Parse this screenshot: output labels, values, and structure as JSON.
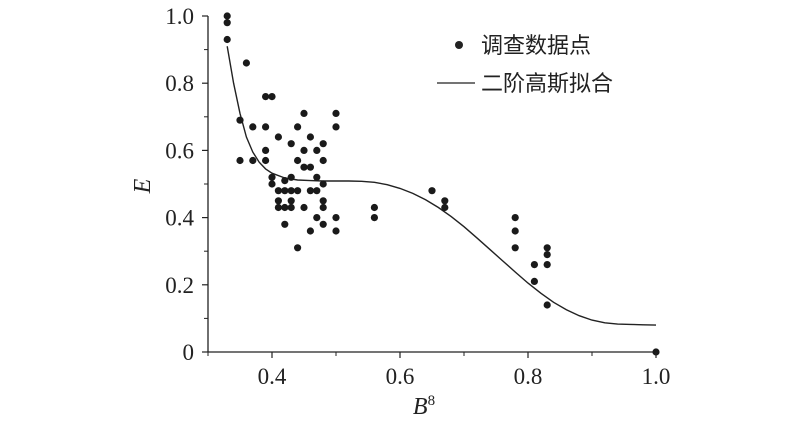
{
  "chart_data": {
    "type": "scatter",
    "xlabel": "B",
    "xlabel_sup": "8",
    "ylabel": "E",
    "xlim": [
      0.3,
      1.0
    ],
    "ylim": [
      0,
      1.0
    ],
    "x_ticks": [
      0.4,
      0.6,
      0.8,
      1.0
    ],
    "x_tick_labels": [
      "0.4",
      "0.6",
      "0.8",
      "1.0"
    ],
    "y_ticks": [
      0,
      0.2,
      0.4,
      0.6,
      0.8,
      1.0
    ],
    "y_tick_labels": [
      "0",
      "0.2",
      "0.4",
      "0.6",
      "0.8",
      "1.0"
    ],
    "grid": false,
    "legend_position": "top-right",
    "series": [
      {
        "name": "调查数据点",
        "kind": "scatter",
        "points": [
          [
            0.33,
            1.0
          ],
          [
            0.33,
            0.98
          ],
          [
            0.33,
            0.93
          ],
          [
            0.35,
            0.69
          ],
          [
            0.35,
            0.57
          ],
          [
            0.36,
            0.86
          ],
          [
            0.37,
            0.67
          ],
          [
            0.37,
            0.57
          ],
          [
            0.39,
            0.76
          ],
          [
            0.4,
            0.76
          ],
          [
            0.39,
            0.67
          ],
          [
            0.39,
            0.6
          ],
          [
            0.39,
            0.57
          ],
          [
            0.4,
            0.52
          ],
          [
            0.4,
            0.5
          ],
          [
            0.41,
            0.64
          ],
          [
            0.41,
            0.48
          ],
          [
            0.41,
            0.45
          ],
          [
            0.41,
            0.43
          ],
          [
            0.42,
            0.51
          ],
          [
            0.42,
            0.48
          ],
          [
            0.42,
            0.43
          ],
          [
            0.42,
            0.38
          ],
          [
            0.43,
            0.62
          ],
          [
            0.43,
            0.52
          ],
          [
            0.43,
            0.48
          ],
          [
            0.43,
            0.45
          ],
          [
            0.43,
            0.43
          ],
          [
            0.44,
            0.67
          ],
          [
            0.44,
            0.57
          ],
          [
            0.44,
            0.48
          ],
          [
            0.44,
            0.31
          ],
          [
            0.45,
            0.71
          ],
          [
            0.45,
            0.6
          ],
          [
            0.45,
            0.55
          ],
          [
            0.45,
            0.43
          ],
          [
            0.46,
            0.64
          ],
          [
            0.46,
            0.55
          ],
          [
            0.46,
            0.48
          ],
          [
            0.46,
            0.36
          ],
          [
            0.47,
            0.6
          ],
          [
            0.47,
            0.52
          ],
          [
            0.47,
            0.48
          ],
          [
            0.47,
            0.4
          ],
          [
            0.48,
            0.62
          ],
          [
            0.48,
            0.57
          ],
          [
            0.48,
            0.5
          ],
          [
            0.48,
            0.45
          ],
          [
            0.48,
            0.43
          ],
          [
            0.48,
            0.38
          ],
          [
            0.5,
            0.71
          ],
          [
            0.5,
            0.67
          ],
          [
            0.5,
            0.4
          ],
          [
            0.5,
            0.36
          ],
          [
            0.56,
            0.43
          ],
          [
            0.56,
            0.4
          ],
          [
            0.65,
            0.48
          ],
          [
            0.67,
            0.45
          ],
          [
            0.67,
            0.43
          ],
          [
            0.78,
            0.4
          ],
          [
            0.78,
            0.36
          ],
          [
            0.78,
            0.31
          ],
          [
            0.81,
            0.26
          ],
          [
            0.81,
            0.21
          ],
          [
            0.83,
            0.31
          ],
          [
            0.83,
            0.29
          ],
          [
            0.83,
            0.26
          ],
          [
            0.83,
            0.14
          ],
          [
            1.0,
            0.0
          ]
        ]
      },
      {
        "name": "二阶高斯拟合",
        "kind": "line",
        "points": [
          [
            0.33,
            0.91
          ],
          [
            0.34,
            0.8
          ],
          [
            0.35,
            0.71
          ],
          [
            0.36,
            0.64
          ],
          [
            0.37,
            0.595
          ],
          [
            0.38,
            0.565
          ],
          [
            0.39,
            0.545
          ],
          [
            0.4,
            0.532
          ],
          [
            0.42,
            0.518
          ],
          [
            0.44,
            0.512
          ],
          [
            0.46,
            0.51
          ],
          [
            0.48,
            0.509
          ],
          [
            0.5,
            0.509
          ],
          [
            0.52,
            0.509
          ],
          [
            0.54,
            0.508
          ],
          [
            0.56,
            0.505
          ],
          [
            0.58,
            0.498
          ],
          [
            0.6,
            0.487
          ],
          [
            0.62,
            0.472
          ],
          [
            0.64,
            0.453
          ],
          [
            0.66,
            0.43
          ],
          [
            0.68,
            0.403
          ],
          [
            0.7,
            0.373
          ],
          [
            0.72,
            0.34
          ],
          [
            0.74,
            0.306
          ],
          [
            0.76,
            0.272
          ],
          [
            0.78,
            0.238
          ],
          [
            0.8,
            0.205
          ],
          [
            0.82,
            0.175
          ],
          [
            0.84,
            0.148
          ],
          [
            0.86,
            0.126
          ],
          [
            0.88,
            0.108
          ],
          [
            0.9,
            0.095
          ],
          [
            0.92,
            0.087
          ],
          [
            0.94,
            0.083
          ],
          [
            0.96,
            0.082
          ],
          [
            0.98,
            0.081
          ],
          [
            1.0,
            0.08
          ]
        ]
      }
    ]
  }
}
